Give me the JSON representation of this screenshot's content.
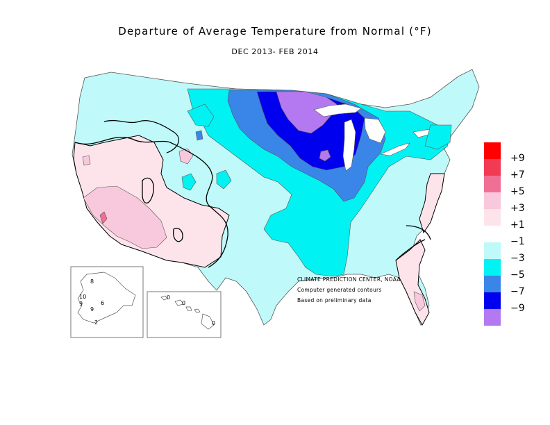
{
  "title": "Departure of Average Temperature from Normal (°F)",
  "subtitle": "DEC 2013- FEB 2014",
  "credits": [
    "CLIMATE PREDICTION CENTER, NOAA",
    "Computer generated contours",
    "Based on preliminary data"
  ],
  "legend": {
    "labels": [
      "+9",
      "+7",
      "+5",
      "+3",
      "+1",
      "−1",
      "−3",
      "−5",
      "−7",
      "−9"
    ],
    "colors": [
      "#ff0000",
      "#f23a55",
      "#f07095",
      "#f8c8dc",
      "#fde4ea",
      "#ffffff",
      "#bff9f9",
      "#00f2f2",
      "#3a86e8",
      "#0000ee",
      "#b479f0"
    ]
  },
  "alaska_labels": [
    "8",
    "10",
    "9",
    "6",
    "9",
    "2"
  ],
  "hawaii_labels": [
    "0",
    "0",
    "0"
  ],
  "colors": {
    "cool_1_3": "#bff9f9",
    "cool_3_5": "#00f2f2",
    "cool_5_7": "#3a86e8",
    "cool_7_9": "#0000ee",
    "cool_9plus": "#b479f0",
    "warm_1_3": "#fde4ea",
    "warm_3_5": "#f8c8dc",
    "warm_5_7": "#f07095",
    "neutral": "#ffffff"
  }
}
